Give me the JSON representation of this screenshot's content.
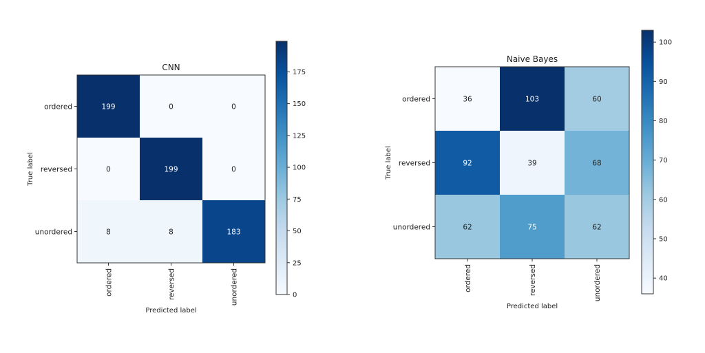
{
  "colormap": [
    "#f7fbff",
    "#deebf7",
    "#c6dbef",
    "#9ecae1",
    "#6baed6",
    "#4292c6",
    "#2171b5",
    "#08519c",
    "#08306b"
  ],
  "chart_data": [
    {
      "type": "heatmap",
      "title": "CNN",
      "xlabel": "Predicted label",
      "ylabel": "True label",
      "x_categories": [
        "ordered",
        "reversed",
        "unordered"
      ],
      "y_categories": [
        "ordered",
        "reversed",
        "unordered"
      ],
      "values": [
        [
          199,
          0,
          0
        ],
        [
          0,
          199,
          0
        ],
        [
          8,
          8,
          183
        ]
      ],
      "colorbar_range": [
        0,
        199
      ],
      "colorbar_ticks": [
        0,
        25,
        50,
        75,
        100,
        125,
        150,
        175
      ]
    },
    {
      "type": "heatmap",
      "title": "Naive Bayes",
      "xlabel": "Predicted label",
      "ylabel": "True label",
      "x_categories": [
        "ordered",
        "reversed",
        "unordered"
      ],
      "y_categories": [
        "ordered",
        "reversed",
        "unordered"
      ],
      "values": [
        [
          36,
          103,
          60
        ],
        [
          92,
          39,
          68
        ],
        [
          62,
          75,
          62
        ]
      ],
      "colorbar_range": [
        36,
        103
      ],
      "colorbar_ticks": [
        40,
        50,
        60,
        70,
        80,
        90,
        100
      ]
    }
  ]
}
